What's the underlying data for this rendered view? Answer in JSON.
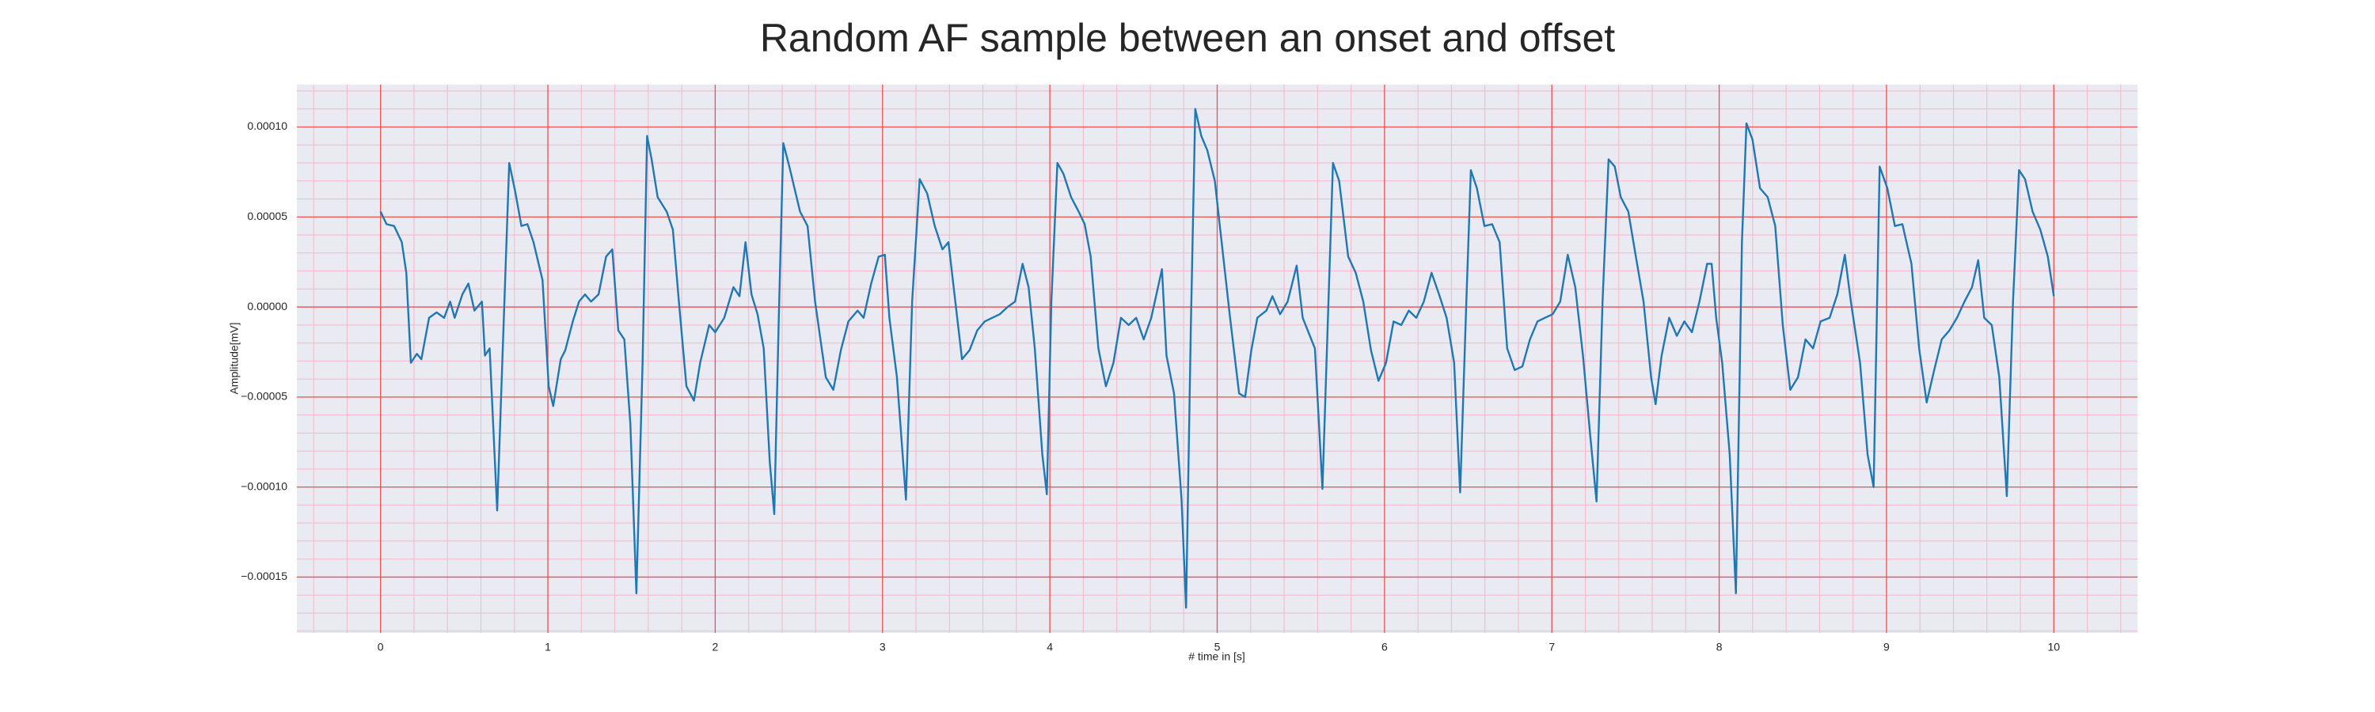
{
  "chart_data": {
    "type": "line",
    "title": "Random AF sample between an onset and offset",
    "xlabel": "# time in [s]",
    "ylabel": "Amplitude[mV]",
    "color": "#1f77b4",
    "grid": true,
    "minor_grid": true,
    "xlim": [
      -0.5,
      10.5
    ],
    "xticks": [
      0,
      1,
      2,
      3,
      4,
      5,
      6,
      7,
      8,
      9,
      10
    ],
    "ylim": [
      -0.000181,
      0.0001235
    ],
    "yticks": [
      {
        "value": -0.00015,
        "label": "−0.00015"
      },
      {
        "value": -0.0001,
        "label": "−0.00010"
      },
      {
        "value": -5e-05,
        "label": "−0.00005"
      },
      {
        "value": 0,
        "label": "0.00000"
      },
      {
        "value": 5e-05,
        "label": "0.00005"
      },
      {
        "value": 0.0001,
        "label": "0.00010"
      }
    ],
    "x": [
      0,
      0.036,
      0.081,
      0.127,
      0.154,
      0.181,
      0.217,
      0.244,
      0.29,
      0.335,
      0.38,
      0.416,
      0.443,
      0.489,
      0.525,
      0.561,
      0.606,
      0.624,
      0.652,
      0.697,
      0.769,
      0.805,
      0.842,
      0.878,
      0.914,
      0.968,
      1.005,
      1.032,
      1.077,
      1.104,
      1.149,
      1.186,
      1.222,
      1.258,
      1.303,
      1.348,
      1.385,
      1.421,
      1.457,
      1.493,
      1.529,
      1.566,
      1.593,
      1.62,
      1.656,
      1.71,
      1.747,
      1.783,
      1.828,
      1.873,
      1.91,
      1.964,
      2.0,
      2.054,
      2.109,
      2.145,
      2.181,
      2.217,
      2.253,
      2.29,
      2.326,
      2.353,
      2.38,
      2.407,
      2.443,
      2.507,
      2.552,
      2.597,
      2.661,
      2.706,
      2.751,
      2.796,
      2.851,
      2.887,
      2.932,
      2.977,
      3.014,
      3.041,
      3.086,
      3.14,
      3.177,
      3.222,
      3.267,
      3.312,
      3.358,
      3.394,
      3.43,
      3.475,
      3.52,
      3.566,
      3.611,
      3.656,
      3.701,
      3.747,
      3.792,
      3.837,
      3.873,
      3.91,
      3.955,
      3.982,
      4.009,
      4.045,
      4.081,
      4.127,
      4.172,
      4.208,
      4.244,
      4.29,
      4.335,
      4.38,
      4.425,
      4.471,
      4.516,
      4.561,
      4.606,
      4.67,
      4.697,
      4.742,
      4.787,
      4.814,
      4.842,
      4.869,
      4.905,
      4.941,
      4.986,
      5.041,
      5.077,
      5.131,
      5.167,
      5.204,
      5.24,
      5.294,
      5.33,
      5.376,
      5.421,
      5.475,
      5.511,
      5.584,
      5.629,
      5.665,
      5.692,
      5.729,
      5.783,
      5.828,
      5.873,
      5.919,
      5.964,
      6.009,
      6.054,
      6.1,
      6.145,
      6.19,
      6.235,
      6.281,
      6.326,
      6.371,
      6.416,
      6.452,
      6.489,
      6.516,
      6.552,
      6.597,
      6.643,
      6.688,
      6.733,
      6.778,
      6.824,
      6.869,
      6.914,
      6.959,
      7.005,
      7.05,
      7.095,
      7.14,
      7.186,
      7.231,
      7.267,
      7.303,
      7.339,
      7.376,
      7.412,
      7.457,
      7.502,
      7.548,
      7.593,
      7.62,
      7.656,
      7.701,
      7.747,
      7.792,
      7.837,
      7.882,
      7.928,
      7.955,
      7.982,
      8.018,
      8.063,
      8.1,
      8.136,
      8.163,
      8.199,
      8.244,
      8.29,
      8.335,
      8.38,
      8.425,
      8.471,
      8.516,
      8.561,
      8.606,
      8.66,
      8.706,
      8.751,
      8.787,
      8.842,
      8.887,
      8.923,
      8.959,
      9.005,
      9.05,
      9.095,
      9.149,
      9.195,
      9.24,
      9.285,
      9.33,
      9.376,
      9.421,
      9.466,
      9.511,
      9.548,
      9.584,
      9.629,
      9.674,
      9.719,
      9.756,
      9.792,
      9.828,
      9.873,
      9.919,
      9.964,
      10.0
    ],
    "values": [
      5.3e-05,
      4.6e-05,
      4.5e-05,
      3.6e-05,
      1.9e-05,
      -3.1e-05,
      -2.6e-05,
      -2.9e-05,
      -6e-06,
      -3e-06,
      -6e-06,
      3e-06,
      -6e-06,
      7e-06,
      1.3e-05,
      -2e-06,
      3e-06,
      -2.7e-05,
      -2.3e-05,
      -0.000113,
      8e-05,
      6.4e-05,
      4.5e-05,
      4.6e-05,
      3.6e-05,
      1.5e-05,
      -4.4e-05,
      -5.5e-05,
      -2.9e-05,
      -2.4e-05,
      -8e-06,
      3e-06,
      7e-06,
      3e-06,
      7e-06,
      2.8e-05,
      3.2e-05,
      -1.3e-05,
      -1.8e-05,
      -6.5e-05,
      -0.000159,
      -3.1e-05,
      9.5e-05,
      8.2e-05,
      6.1e-05,
      5.3e-05,
      4.3e-05,
      3e-06,
      -4.4e-05,
      -5.2e-05,
      -3.1e-05,
      -1e-05,
      -1.4e-05,
      -6e-06,
      1.1e-05,
      6e-06,
      3.6e-05,
      7e-06,
      -4e-06,
      -2.3e-05,
      -8.6e-05,
      -0.000115,
      -6e-06,
      9.1e-05,
      7.8e-05,
      5.3e-05,
      4.5e-05,
      3e-06,
      -3.9e-05,
      -4.6e-05,
      -2.4e-05,
      -8e-06,
      -2e-06,
      -6e-06,
      1.3e-05,
      2.8e-05,
      2.9e-05,
      -6e-06,
      -3.9e-05,
      -0.000107,
      3e-06,
      7.1e-05,
      6.3e-05,
      4.5e-05,
      3.2e-05,
      3.6e-05,
      7e-06,
      -2.9e-05,
      -2.4e-05,
      -1.3e-05,
      -8e-06,
      -6e-06,
      -4e-06,
      0,
      3e-06,
      2.4e-05,
      1.1e-05,
      -2.3e-05,
      -8.2e-05,
      -0.000104,
      3e-06,
      8e-05,
      7.4e-05,
      6.1e-05,
      5.3e-05,
      4.6e-05,
      2.8e-05,
      -2.3e-05,
      -4.4e-05,
      -3.1e-05,
      -6e-06,
      -1e-05,
      -6e-06,
      -1.8e-05,
      -6e-06,
      2.1e-05,
      -2.7e-05,
      -4.8e-05,
      -0.000107,
      -0.000167,
      -1.4e-05,
      0.00011,
      9.5e-05,
      8.7e-05,
      7e-05,
      2.4e-05,
      -6e-06,
      -4.8e-05,
      -5e-05,
      -2.4e-05,
      -6e-06,
      -2e-06,
      6e-06,
      -4e-06,
      3e-06,
      2.3e-05,
      -6e-06,
      -2.3e-05,
      -0.000101,
      3e-06,
      8e-05,
      7e-05,
      2.8e-05,
      1.9e-05,
      3e-06,
      -2.4e-05,
      -4.1e-05,
      -3.1e-05,
      -8e-06,
      -1e-05,
      -2e-06,
      -6e-06,
      3e-06,
      1.9e-05,
      7e-06,
      -6e-06,
      -3.1e-05,
      -0.000103,
      3e-06,
      7.6e-05,
      6.6e-05,
      4.5e-05,
      4.6e-05,
      3.6e-05,
      -2.3e-05,
      -3.5e-05,
      -3.3e-05,
      -1.8e-05,
      -8e-06,
      -6e-06,
      -4e-06,
      3e-06,
      2.9e-05,
      1.1e-05,
      -2.7e-05,
      -7.3e-05,
      -0.000108,
      3e-06,
      8.2e-05,
      7.8e-05,
      6.1e-05,
      5.3e-05,
      2.8e-05,
      3e-06,
      -3.9e-05,
      -5.4e-05,
      -2.7e-05,
      -6e-06,
      -1.6e-05,
      -8e-06,
      -1.4e-05,
      3e-06,
      2.4e-05,
      2.4e-05,
      -6e-06,
      -3.1e-05,
      -8.2e-05,
      -0.000159,
      3.6e-05,
      0.000102,
      9.3e-05,
      6.6e-05,
      6.1e-05,
      4.5e-05,
      -1e-05,
      -4.6e-05,
      -3.9e-05,
      -1.8e-05,
      -2.3e-05,
      -8e-06,
      -6e-06,
      7e-06,
      2.9e-05,
      3e-06,
      -3.1e-05,
      -8.2e-05,
      -0.0001,
      7.8e-05,
      6.6e-05,
      4.5e-05,
      4.6e-05,
      2.4e-05,
      -2.3e-05,
      -5.3e-05,
      -3.5e-05,
      -1.8e-05,
      -1.3e-05,
      -6e-06,
      3e-06,
      1.1e-05,
      2.6e-05,
      -6e-06,
      -1e-05,
      -3.9e-05,
      -0.000105,
      3e-06,
      7.6e-05,
      7.1e-05,
      5.3e-05,
      4.3e-05,
      2.8e-05,
      6e-06
    ]
  }
}
